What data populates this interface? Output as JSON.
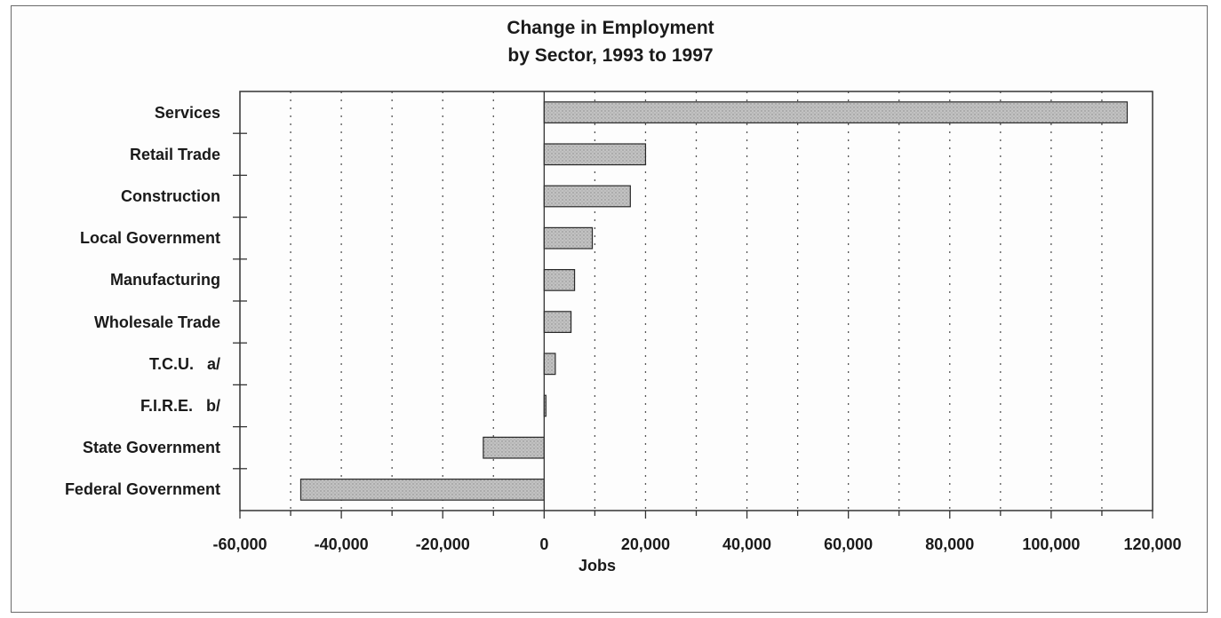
{
  "chart_data": {
    "type": "bar",
    "orientation": "horizontal",
    "title": "Change in Employment",
    "subtitle": "by Sector, 1993 to 1997",
    "xlabel": "Jobs",
    "ylabel": "",
    "xlim": [
      -60000,
      120000
    ],
    "x_ticks": [
      -60000,
      -40000,
      -20000,
      0,
      20000,
      40000,
      60000,
      80000,
      100000,
      120000
    ],
    "x_tick_labels": [
      "-60,000",
      "-40,000",
      "-20,000",
      "0",
      "20,000",
      "40,000",
      "60,000",
      "80,000",
      "100,000",
      "120,000"
    ],
    "grid": "vertical dotted",
    "legend": "none",
    "categories": [
      "Services",
      "Retail Trade",
      "Construction",
      "Local Government",
      "Manufacturing",
      "Wholesale Trade",
      "T.C.U.   a/",
      "F.I.R.E.   b/",
      "State Government",
      "Federal Government"
    ],
    "values": [
      115000,
      20000,
      17000,
      9500,
      6000,
      5300,
      2200,
      200,
      -12000,
      -48000
    ],
    "bar_color": "#bdbdbd",
    "bar_edge_color": "#2a2a2a"
  }
}
